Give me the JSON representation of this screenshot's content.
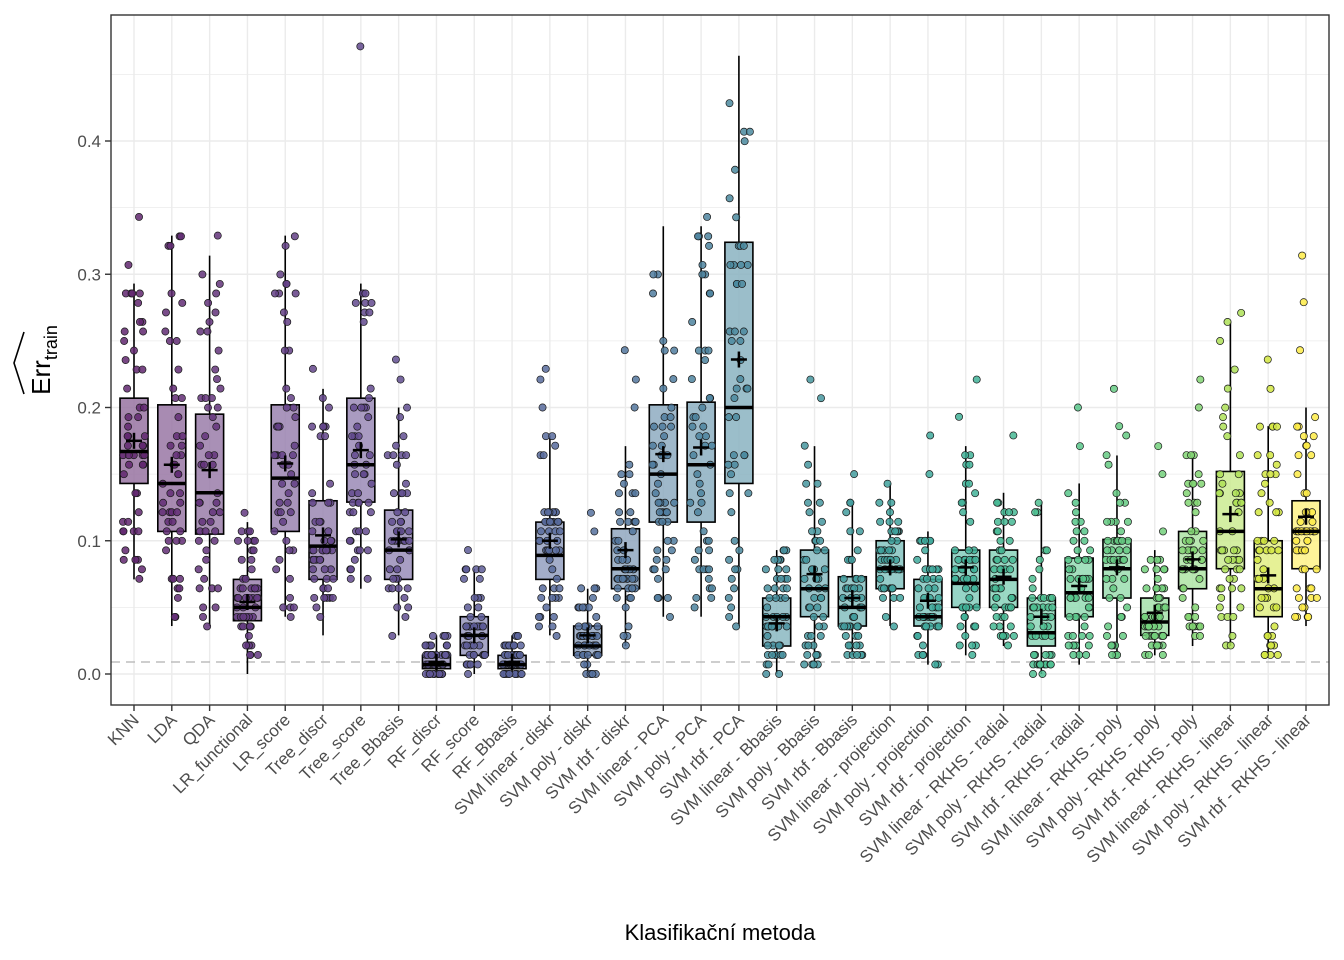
{
  "chart_data": {
    "type": "boxplot",
    "title": "",
    "xlabel": "Klasifikační metoda",
    "ylabel": "Err_train",
    "ylabel_main": "Err",
    "ylabel_sub": "train",
    "ylim": [
      -0.023,
      0.495
    ],
    "yticks": [
      0.0,
      0.1,
      0.2,
      0.3,
      0.4
    ],
    "ytick_labels": [
      "0.0",
      "0.1",
      "0.2",
      "0.3",
      "0.4"
    ],
    "reference_line": 0.009,
    "grid": true,
    "legend": "none",
    "categories": [
      "KNN",
      "LDA",
      "QDA",
      "LR_functional",
      "LR_score",
      "Tree_discr",
      "Tree_score",
      "Tree_Bbasis",
      "RF_discr",
      "RF_score",
      "RF_Bbasis",
      "SVM linear - diskr",
      "SVM poly - diskr",
      "SVM rbf - diskr",
      "SVM linear - PCA",
      "SVM poly - PCA",
      "SVM rbf - PCA",
      "SVM linear - Bbasis",
      "SVM poly - Bbasis",
      "SVM rbf - Bbasis",
      "SVM linear - projection",
      "SVM poly - projection",
      "SVM rbf - projection",
      "SVM linear - RKHS - radial",
      "SVM poly - RKHS - radial",
      "SVM rbf - RKHS - radial",
      "SVM linear - RKHS - poly",
      "SVM poly - RKHS - poly",
      "SVM rbf - RKHS - poly",
      "SVM linear - RKHS - linear",
      "SVM poly - RKHS - linear",
      "SVM rbf - RKHS - linear"
    ],
    "series": [
      {
        "name": "KNN",
        "min": 0.071,
        "q1": 0.143,
        "median": 0.167,
        "q3": 0.207,
        "max": 0.293,
        "mean": 0.175,
        "outliers": [
          0.307,
          0.343
        ],
        "color": "#440154"
      },
      {
        "name": "LDA",
        "min": 0.036,
        "q1": 0.107,
        "median": 0.143,
        "q3": 0.202,
        "max": 0.329,
        "mean": 0.157,
        "outliers": [],
        "color": "#46085c"
      },
      {
        "name": "QDA",
        "min": 0.036,
        "q1": 0.105,
        "median": 0.136,
        "q3": 0.195,
        "max": 0.314,
        "mean": 0.153,
        "outliers": [
          0.329
        ],
        "color": "#471063"
      },
      {
        "name": "LR_functional",
        "min": 0.0,
        "q1": 0.04,
        "median": 0.05,
        "q3": 0.071,
        "max": 0.114,
        "mean": 0.054,
        "outliers": [
          0.121
        ],
        "color": "#481769"
      },
      {
        "name": "LR_score",
        "min": 0.043,
        "q1": 0.107,
        "median": 0.147,
        "q3": 0.202,
        "max": 0.329,
        "mean": 0.158,
        "outliers": [],
        "color": "#481d6f"
      },
      {
        "name": "Tree_discr",
        "min": 0.029,
        "q1": 0.071,
        "median": 0.096,
        "q3": 0.13,
        "max": 0.214,
        "mean": 0.104,
        "outliers": [
          0.229
        ],
        "color": "#482475"
      },
      {
        "name": "Tree_score",
        "min": 0.064,
        "q1": 0.129,
        "median": 0.157,
        "q3": 0.207,
        "max": 0.293,
        "mean": 0.168,
        "outliers": [
          0.471
        ],
        "color": "#472a7a"
      },
      {
        "name": "Tree_Bbasis",
        "min": 0.029,
        "q1": 0.071,
        "median": 0.093,
        "q3": 0.123,
        "max": 0.2,
        "mean": 0.101,
        "outliers": [
          0.221,
          0.236
        ],
        "color": "#46307e"
      },
      {
        "name": "RF_discr",
        "min": 0.0,
        "q1": 0.004,
        "median": 0.007,
        "q3": 0.014,
        "max": 0.029,
        "mean": 0.009,
        "outliers": [],
        "color": "#443983"
      },
      {
        "name": "RF_score",
        "min": 0.0,
        "q1": 0.014,
        "median": 0.029,
        "q3": 0.043,
        "max": 0.079,
        "mean": 0.029,
        "outliers": [
          0.093
        ],
        "color": "#424086"
      },
      {
        "name": "RF_Bbasis",
        "min": 0.0,
        "q1": 0.004,
        "median": 0.007,
        "q3": 0.014,
        "max": 0.029,
        "mean": 0.009,
        "outliers": [],
        "color": "#3e4989"
      },
      {
        "name": "SVM linear - diskr",
        "min": 0.029,
        "q1": 0.071,
        "median": 0.089,
        "q3": 0.114,
        "max": 0.179,
        "mean": 0.1,
        "outliers": [
          0.2,
          0.221,
          0.229
        ],
        "color": "#3b518b"
      },
      {
        "name": "SVM poly - diskr",
        "min": 0.0,
        "q1": 0.014,
        "median": 0.021,
        "q3": 0.036,
        "max": 0.064,
        "mean": 0.029,
        "outliers": [
          0.107,
          0.121
        ],
        "color": "#38588c"
      },
      {
        "name": "SVM rbf - diskr",
        "min": 0.021,
        "q1": 0.064,
        "median": 0.079,
        "q3": 0.109,
        "max": 0.171,
        "mean": 0.093,
        "outliers": [
          0.2,
          0.221,
          0.243
        ],
        "color": "#355f8d"
      },
      {
        "name": "SVM linear - PCA",
        "min": 0.043,
        "q1": 0.114,
        "median": 0.15,
        "q3": 0.202,
        "max": 0.336,
        "mean": 0.165,
        "outliers": [],
        "color": "#31668e"
      },
      {
        "name": "SVM poly - PCA",
        "min": 0.043,
        "q1": 0.114,
        "median": 0.157,
        "q3": 0.204,
        "max": 0.336,
        "mean": 0.17,
        "outliers": [
          0.343
        ],
        "color": "#2e6e8e"
      },
      {
        "name": "SVM rbf - PCA",
        "min": 0.036,
        "q1": 0.143,
        "median": 0.2,
        "q3": 0.324,
        "max": 0.464,
        "mean": 0.236,
        "outliers": [],
        "color": "#2b758e"
      },
      {
        "name": "SVM linear - Bbasis",
        "min": 0.0,
        "q1": 0.021,
        "median": 0.043,
        "q3": 0.057,
        "max": 0.093,
        "mean": 0.038,
        "outliers": [],
        "color": "#287c8e"
      },
      {
        "name": "SVM poly - Bbasis",
        "min": 0.007,
        "q1": 0.043,
        "median": 0.064,
        "q3": 0.093,
        "max": 0.171,
        "mean": 0.075,
        "outliers": [
          0.207,
          0.221
        ],
        "color": "#25838e"
      },
      {
        "name": "SVM rbf - Bbasis",
        "min": 0.014,
        "q1": 0.036,
        "median": 0.05,
        "q3": 0.073,
        "max": 0.129,
        "mean": 0.057,
        "outliers": [
          0.15
        ],
        "color": "#228b8d"
      },
      {
        "name": "SVM linear - projection",
        "min": 0.036,
        "q1": 0.064,
        "median": 0.079,
        "q3": 0.1,
        "max": 0.143,
        "mean": 0.08,
        "outliers": [],
        "color": "#1f928c"
      },
      {
        "name": "SVM poly - projection",
        "min": 0.007,
        "q1": 0.036,
        "median": 0.043,
        "q3": 0.071,
        "max": 0.107,
        "mean": 0.055,
        "outliers": [
          0.15,
          0.179
        ],
        "color": "#1e9a8a"
      },
      {
        "name": "SVM rbf - projection",
        "min": 0.014,
        "q1": 0.05,
        "median": 0.068,
        "q3": 0.093,
        "max": 0.171,
        "mean": 0.08,
        "outliers": [
          0.193,
          0.221
        ],
        "color": "#20a386"
      },
      {
        "name": "SVM linear - RKHS - radial",
        "min": 0.021,
        "q1": 0.05,
        "median": 0.071,
        "q3": 0.093,
        "max": 0.136,
        "mean": 0.073,
        "outliers": [
          0.179
        ],
        "color": "#26ad81"
      },
      {
        "name": "SVM poly - RKHS - radial",
        "min": 0.0,
        "q1": 0.021,
        "median": 0.031,
        "q3": 0.057,
        "max": 0.129,
        "mean": 0.043,
        "outliers": [],
        "color": "#2eb37c"
      },
      {
        "name": "SVM rbf - RKHS - radial",
        "min": 0.007,
        "q1": 0.043,
        "median": 0.061,
        "q3": 0.087,
        "max": 0.143,
        "mean": 0.066,
        "outliers": [
          0.171,
          0.2
        ],
        "color": "#3bbb75"
      },
      {
        "name": "SVM linear - RKHS - poly",
        "min": 0.014,
        "q1": 0.057,
        "median": 0.079,
        "q3": 0.101,
        "max": 0.164,
        "mean": 0.08,
        "outliers": [
          0.179,
          0.186,
          0.214
        ],
        "color": "#4ac16d"
      },
      {
        "name": "SVM poly - RKHS - poly",
        "min": 0.014,
        "q1": 0.029,
        "median": 0.039,
        "q3": 0.057,
        "max": 0.093,
        "mean": 0.046,
        "outliers": [
          0.107,
          0.15,
          0.171
        ],
        "color": "#5ac864"
      },
      {
        "name": "SVM rbf - RKHS - poly",
        "min": 0.021,
        "q1": 0.064,
        "median": 0.079,
        "q3": 0.107,
        "max": 0.164,
        "mean": 0.086,
        "outliers": [
          0.2,
          0.221
        ],
        "color": "#6ccd5a"
      },
      {
        "name": "SVM linear - RKHS - linear",
        "min": 0.021,
        "q1": 0.079,
        "median": 0.107,
        "q3": 0.152,
        "max": 0.264,
        "mean": 0.12,
        "outliers": [
          0.271
        ],
        "color": "#a0da39"
      },
      {
        "name": "SVM poly - RKHS - linear",
        "min": 0.014,
        "q1": 0.043,
        "median": 0.064,
        "q3": 0.1,
        "max": 0.186,
        "mean": 0.074,
        "outliers": [
          0.214,
          0.236
        ],
        "color": "#cae11f"
      },
      {
        "name": "SVM rbf - RKHS - linear",
        "min": 0.036,
        "q1": 0.079,
        "median": 0.107,
        "q3": 0.13,
        "max": 0.2,
        "mean": 0.118,
        "outliers": [
          0.243,
          0.279,
          0.314
        ],
        "color": "#fde725"
      }
    ]
  }
}
